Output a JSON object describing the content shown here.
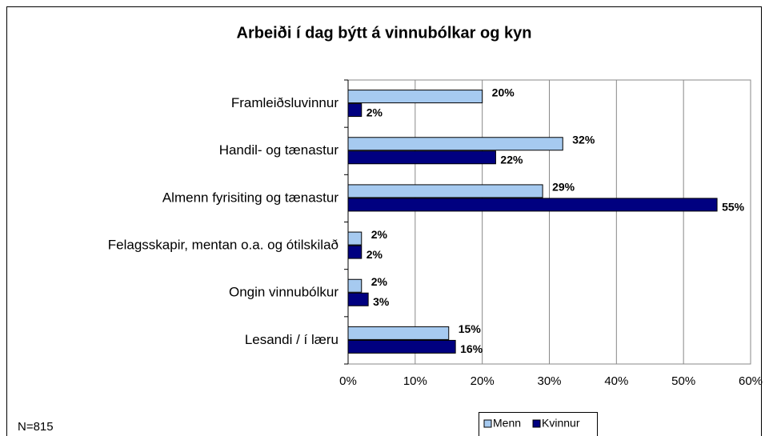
{
  "chart_data": {
    "type": "hbar",
    "title": "Arbeiði í dag býtt á vinnubólkar og kyn",
    "categories": [
      "Framleiðsluvinnur",
      "Handil- og tænastur",
      "Almenn fyrisiting og tænastur",
      "Felagsskapir, mentan o.a. og ótilskilað",
      "Ongin vinnubólkur",
      "Lesandi / í læru"
    ],
    "series": [
      {
        "name": "Menn",
        "color": "#a6caf0",
        "values": [
          20,
          32,
          29,
          2,
          2,
          15
        ],
        "value_labels": [
          "20%",
          "32%",
          "29%",
          "2%",
          "2%",
          "15%"
        ]
      },
      {
        "name": "Kvinnur",
        "color": "#000080",
        "values": [
          2,
          22,
          55,
          2,
          3,
          16
        ],
        "value_labels": [
          "2%",
          "22%",
          "55%",
          "2%",
          "3%",
          "16%"
        ]
      }
    ],
    "xlim": [
      0,
      60
    ],
    "xticks": [
      {
        "value": 0,
        "label": "0%"
      },
      {
        "value": 10,
        "label": "10%"
      },
      {
        "value": 20,
        "label": "20%"
      },
      {
        "value": 30,
        "label": "30%"
      },
      {
        "value": 40,
        "label": "40%"
      },
      {
        "value": 50,
        "label": "50%"
      },
      {
        "value": 60,
        "label": "60%"
      }
    ],
    "grid": true,
    "legend": "bottom",
    "note": "N=815"
  }
}
